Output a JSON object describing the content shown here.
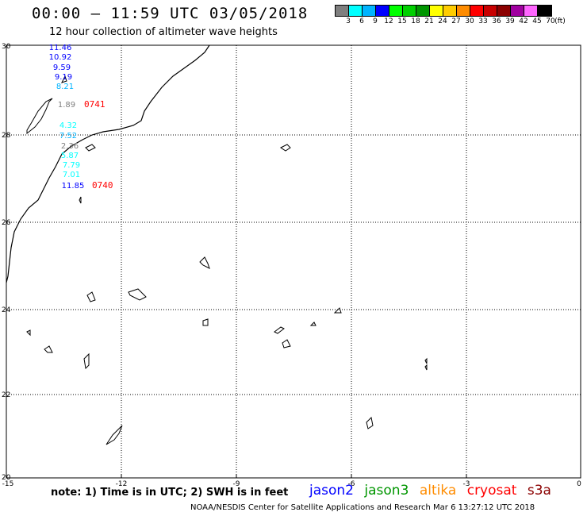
{
  "header": {
    "title": "00:00 – 11:59 UTC 03/05/2018",
    "subtitle": "12 hour collection of altimeter wave heights"
  },
  "legend": {
    "colors": [
      "#7f7f7f",
      "#00ffff",
      "#00b4ff",
      "#0000ff",
      "#00ff00",
      "#00d000",
      "#009600",
      "#ffff00",
      "#ffcc00",
      "#ff8c00",
      "#ff0000",
      "#c80000",
      "#8b0000",
      "#a000a0",
      "#ff66ff",
      "#000000"
    ],
    "labels": [
      "3",
      "6",
      "9",
      "12",
      "15",
      "18",
      "21",
      "24",
      "27",
      "30",
      "33",
      "36",
      "39",
      "42",
      "45",
      "70",
      "(ft)"
    ]
  },
  "axes": {
    "lat_labels": [
      "30",
      "28",
      "26",
      "24",
      "22",
      "20"
    ],
    "lon_labels": [
      "-15",
      "-12",
      "-9",
      "-6",
      "-3",
      "0"
    ]
  },
  "observations": {
    "track_a": [
      "11.46",
      "10.92",
      "9.59",
      "9.19",
      "8.21",
      "1.89"
    ],
    "track_b": [
      "4.32",
      "7.52",
      "2.36",
      "5.87",
      "7.79",
      "7.01",
      "11.85"
    ],
    "times": [
      "0741",
      "0740"
    ]
  },
  "note": "note: 1) Time is in UTC; 2) SWH is in feet",
  "satellites": [
    {
      "name": "jason2",
      "color": "#0000ff"
    },
    {
      "name": "jason3",
      "color": "#009600"
    },
    {
      "name": "altika",
      "color": "#ff8c00"
    },
    {
      "name": "cryosat",
      "color": "#ff0000"
    },
    {
      "name": "s3a",
      "color": "#8b0000"
    }
  ],
  "footer": "NOAA/NESDIS Center for Satellite Applications and Research   Mar  6 13:27:12 UTC 2018"
}
